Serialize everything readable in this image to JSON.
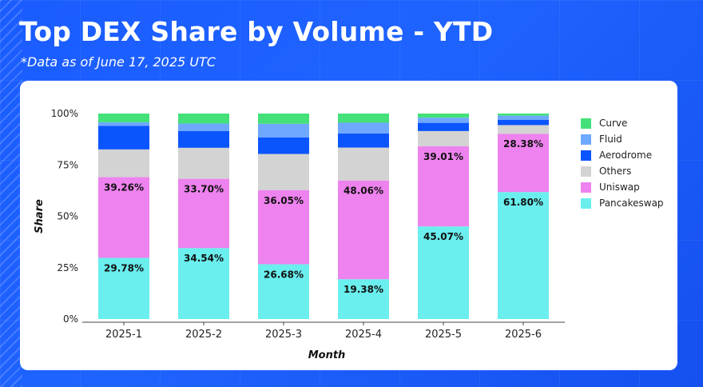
{
  "header": {
    "title": "Top DEX Share by Volume - YTD",
    "subtitle": "*Data as of June 17, 2025 UTC"
  },
  "chart_data": {
    "type": "bar",
    "stacked": true,
    "percent": true,
    "categories": [
      "2025-1",
      "2025-2",
      "2025-3",
      "2025-4",
      "2025-5",
      "2025-6"
    ],
    "xlabel": "Month",
    "ylabel": "Share",
    "ylim": [
      0,
      100
    ],
    "yticks": [
      "0%",
      "25%",
      "50%",
      "75%",
      "100%"
    ],
    "legend_position": "right",
    "series": [
      {
        "name": "Pancakeswap",
        "color": "#6aeeee",
        "values": [
          29.78,
          34.54,
          26.68,
          19.38,
          45.07,
          61.8
        ],
        "labels": [
          "29.78%",
          "34.54%",
          "26.68%",
          "19.38%",
          "45.07%",
          "61.80%"
        ]
      },
      {
        "name": "Uniswap",
        "color": "#ee82ee",
        "values": [
          39.26,
          33.7,
          36.05,
          48.06,
          39.01,
          28.38
        ],
        "labels": [
          "39.26%",
          "33.70%",
          "36.05%",
          "48.06%",
          "39.01%",
          "28.38%"
        ]
      },
      {
        "name": "Others",
        "color": "#d3d3d3",
        "values": [
          13.5,
          15.1,
          17.6,
          16.0,
          7.4,
          4.2
        ]
      },
      {
        "name": "Aerodrome",
        "color": "#0b55ff",
        "values": [
          11.5,
          8.1,
          8.0,
          6.9,
          4.0,
          2.6
        ]
      },
      {
        "name": "Fluid",
        "color": "#6ea8ff",
        "values": [
          1.7,
          3.7,
          6.7,
          5.2,
          2.5,
          2.0
        ]
      },
      {
        "name": "Curve",
        "color": "#44e07a",
        "values": [
          4.26,
          4.86,
          4.97,
          4.46,
          2.02,
          1.02
        ]
      }
    ],
    "legend_order": [
      "Curve",
      "Fluid",
      "Aerodrome",
      "Others",
      "Uniswap",
      "Pancakeswap"
    ]
  }
}
